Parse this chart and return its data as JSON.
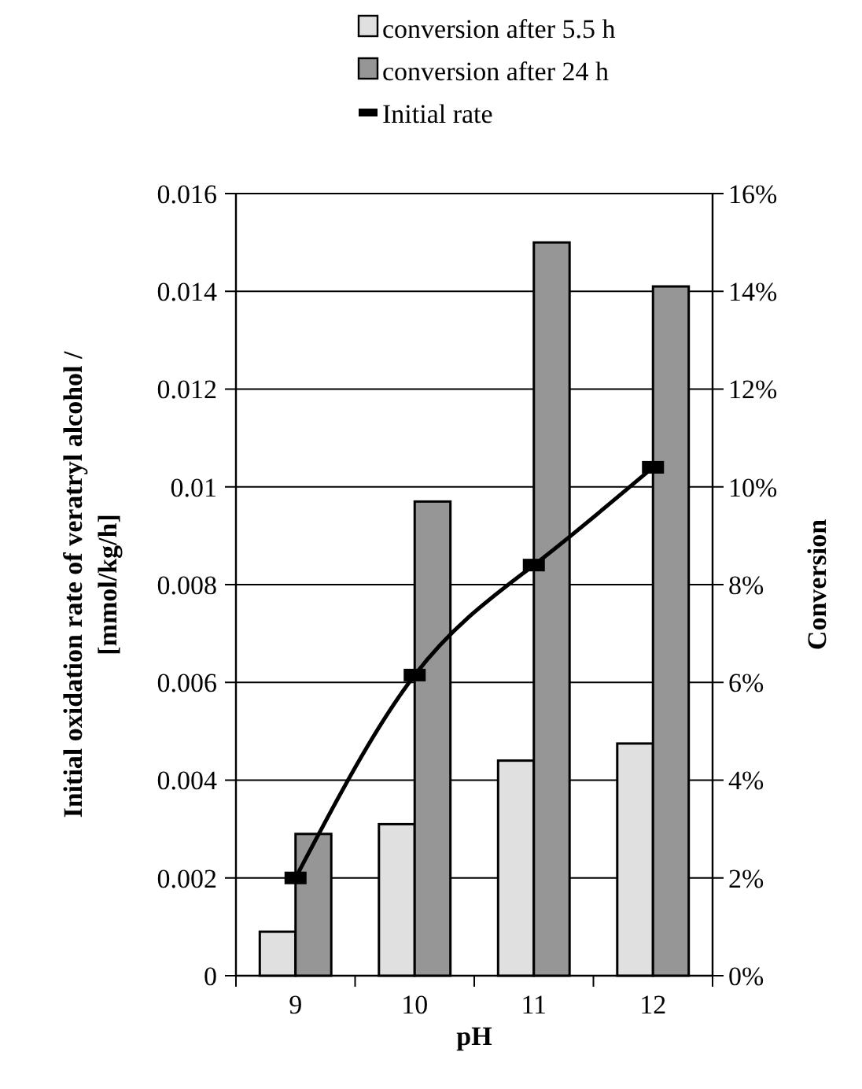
{
  "chart_data": {
    "type": "bar",
    "xlabel": "pH",
    "ylabel": "Initial oxidation rate of veratryl alcohol /\n[mmol/kg/h]",
    "y2label": "Conversion",
    "categories": [
      "9",
      "10",
      "11",
      "12"
    ],
    "series": [
      {
        "name": "conversion after 5.5 h",
        "color": "#e0e0e0",
        "axis": "y2",
        "values": [
          0.9,
          3.1,
          4.4,
          4.75
        ]
      },
      {
        "name": "conversion after 24 h",
        "color": "#969696",
        "axis": "y2",
        "values": [
          2.9,
          9.7,
          15.0,
          14.1
        ]
      },
      {
        "name": "Initial rate",
        "type": "line",
        "color": "#000000",
        "marker": "square",
        "values": [
          0.002,
          0.00615,
          0.0084,
          0.0104
        ]
      }
    ],
    "ylim": [
      0,
      0.016
    ],
    "yticks": [
      0,
      0.002,
      0.004,
      0.006,
      0.008,
      0.01,
      0.012,
      0.014,
      0.016
    ],
    "y2lim": [
      0,
      16
    ],
    "y2ticks": [
      {
        "value": 0,
        "label": "0%"
      },
      {
        "value": 2,
        "label": "2%"
      },
      {
        "value": 4,
        "label": "4%"
      },
      {
        "value": 6,
        "label": "6%"
      },
      {
        "value": 8,
        "label": "8%"
      },
      {
        "value": 10,
        "label": "10%"
      },
      {
        "value": 12,
        "label": "12%"
      },
      {
        "value": 14,
        "label": "14%"
      },
      {
        "value": 16,
        "label": "16%"
      }
    ],
    "grid": "y",
    "legend": "top"
  }
}
